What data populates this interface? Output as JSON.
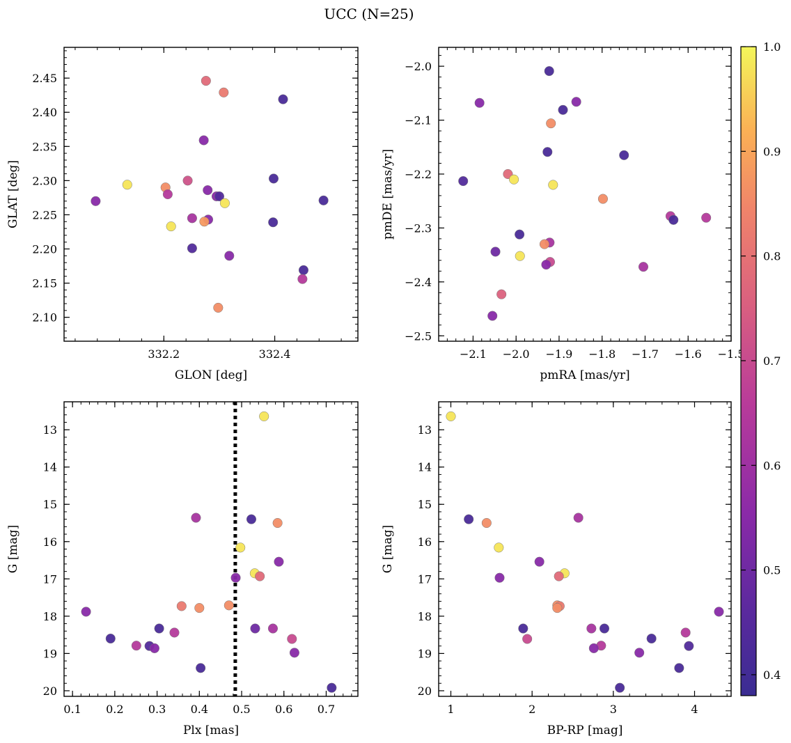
{
  "suptitle": "UCC (N=25)",
  "colorbar": {
    "colormap": "plasma",
    "range": [
      0.38,
      1.0
    ],
    "ticks": [
      0.4,
      0.5,
      0.6,
      0.7,
      0.8,
      0.9,
      1.0
    ],
    "tick_labels": [
      "0.4",
      "0.5",
      "0.6",
      "0.7",
      "0.8",
      "0.9",
      "1.0"
    ]
  },
  "chart_data": [
    {
      "type": "scatter",
      "id": "glon-glat",
      "xlabel": "GLON [deg]",
      "ylabel": "GLAT [deg]",
      "xlim": [
        332.02,
        332.55
      ],
      "ylim": [
        2.065,
        2.495
      ],
      "y_inverted": false,
      "xticks": [
        332.2,
        332.4
      ],
      "xtick_labels": [
        "332.2",
        "332.4"
      ],
      "yticks": [
        2.1,
        2.15,
        2.2,
        2.25,
        2.3,
        2.35,
        2.4,
        2.45
      ],
      "ytick_labels": [
        "2.10",
        "2.15",
        "2.20",
        "2.25",
        "2.30",
        "2.35",
        "2.40",
        "2.45"
      ],
      "grid": false,
      "points": [
        {
          "x": 332.276,
          "y": 2.446,
          "c": 0.78
        },
        {
          "x": 332.308,
          "y": 2.429,
          "c": 0.82
        },
        {
          "x": 332.415,
          "y": 2.419,
          "c": 0.42
        },
        {
          "x": 332.272,
          "y": 2.359,
          "c": 0.55
        },
        {
          "x": 332.398,
          "y": 2.303,
          "c": 0.42
        },
        {
          "x": 332.134,
          "y": 2.294,
          "c": 0.98
        },
        {
          "x": 332.243,
          "y": 2.3,
          "c": 0.72
        },
        {
          "x": 332.203,
          "y": 2.29,
          "c": 0.86
        },
        {
          "x": 332.279,
          "y": 2.286,
          "c": 0.55
        },
        {
          "x": 332.207,
          "y": 2.28,
          "c": 0.65
        },
        {
          "x": 332.295,
          "y": 2.277,
          "c": 0.55
        },
        {
          "x": 332.3,
          "y": 2.277,
          "c": 0.44
        },
        {
          "x": 332.31,
          "y": 2.267,
          "c": 0.98
        },
        {
          "x": 332.077,
          "y": 2.27,
          "c": 0.55
        },
        {
          "x": 332.488,
          "y": 2.271,
          "c": 0.42
        },
        {
          "x": 332.251,
          "y": 2.245,
          "c": 0.62
        },
        {
          "x": 332.28,
          "y": 2.243,
          "c": 0.55
        },
        {
          "x": 332.273,
          "y": 2.24,
          "c": 0.88
        },
        {
          "x": 332.397,
          "y": 2.239,
          "c": 0.42
        },
        {
          "x": 332.213,
          "y": 2.233,
          "c": 0.98
        },
        {
          "x": 332.251,
          "y": 2.201,
          "c": 0.44
        },
        {
          "x": 332.318,
          "y": 2.19,
          "c": 0.55
        },
        {
          "x": 332.452,
          "y": 2.169,
          "c": 0.42
        },
        {
          "x": 332.45,
          "y": 2.156,
          "c": 0.65
        },
        {
          "x": 332.298,
          "y": 2.114,
          "c": 0.86
        }
      ]
    },
    {
      "type": "scatter",
      "id": "pmra-pmde",
      "xlabel": "pmRA [mas/yr]",
      "ylabel": "pmDE [mas/yr]",
      "xlim": [
        -2.18,
        -1.5
      ],
      "ylim": [
        -2.51,
        -1.965
      ],
      "y_inverted": false,
      "xticks": [
        -2.1,
        -2.0,
        -1.9,
        -1.8,
        -1.7,
        -1.6,
        -1.5
      ],
      "xtick_labels": [
        "−2.1",
        "−2.0",
        "−1.9",
        "−1.8",
        "−1.7",
        "−1.6",
        "−1.5"
      ],
      "yticks": [
        -2.5,
        -2.4,
        -2.3,
        -2.2,
        -2.1,
        -2.0
      ],
      "ytick_labels": [
        "−2.5",
        "−2.4",
        "−2.3",
        "−2.2",
        "−2.1",
        "−2.0"
      ],
      "grid": false,
      "points": [
        {
          "x": -1.923,
          "y": -2.009,
          "c": 0.42
        },
        {
          "x": -2.085,
          "y": -2.068,
          "c": 0.55
        },
        {
          "x": -1.86,
          "y": -2.066,
          "c": 0.55
        },
        {
          "x": -1.891,
          "y": -2.081,
          "c": 0.42
        },
        {
          "x": -1.919,
          "y": -2.106,
          "c": 0.86
        },
        {
          "x": -1.927,
          "y": -2.159,
          "c": 0.42
        },
        {
          "x": -1.749,
          "y": -2.165,
          "c": 0.42
        },
        {
          "x": -2.123,
          "y": -2.213,
          "c": 0.44
        },
        {
          "x": -2.019,
          "y": -2.2,
          "c": 0.78
        },
        {
          "x": -2.005,
          "y": -2.21,
          "c": 0.98
        },
        {
          "x": -1.914,
          "y": -2.22,
          "c": 0.98
        },
        {
          "x": -1.798,
          "y": -2.246,
          "c": 0.86
        },
        {
          "x": -1.641,
          "y": -2.278,
          "c": 0.65
        },
        {
          "x": -1.634,
          "y": -2.285,
          "c": 0.42
        },
        {
          "x": -1.558,
          "y": -2.281,
          "c": 0.65
        },
        {
          "x": -1.992,
          "y": -2.312,
          "c": 0.42
        },
        {
          "x": -1.922,
          "y": -2.327,
          "c": 0.62
        },
        {
          "x": -1.934,
          "y": -2.33,
          "c": 0.86
        },
        {
          "x": -2.048,
          "y": -2.344,
          "c": 0.5
        },
        {
          "x": -1.991,
          "y": -2.352,
          "c": 0.98
        },
        {
          "x": -1.921,
          "y": -2.363,
          "c": 0.7
        },
        {
          "x": -1.93,
          "y": -2.368,
          "c": 0.55
        },
        {
          "x": -1.704,
          "y": -2.372,
          "c": 0.62
        },
        {
          "x": -2.034,
          "y": -2.423,
          "c": 0.76
        },
        {
          "x": -2.055,
          "y": -2.463,
          "c": 0.55
        }
      ]
    },
    {
      "type": "scatter",
      "id": "plx-g",
      "xlabel": "Plx [mas]",
      "ylabel": "G [mag]",
      "xlim": [
        0.08,
        0.775
      ],
      "ylim": [
        20.15,
        12.25
      ],
      "y_inverted": true,
      "xticks": [
        0.1,
        0.2,
        0.3,
        0.4,
        0.5,
        0.6,
        0.7
      ],
      "xtick_labels": [
        "0.1",
        "0.2",
        "0.3",
        "0.4",
        "0.5",
        "0.6",
        "0.7"
      ],
      "yticks": [
        13,
        14,
        15,
        16,
        17,
        18,
        19,
        20
      ],
      "ytick_labels": [
        "13",
        "14",
        "15",
        "16",
        "17",
        "18",
        "19",
        "20"
      ],
      "grid": false,
      "vline": {
        "x": 0.485,
        "style": "dotted"
      },
      "points": [
        {
          "x": 0.553,
          "y": 12.64,
          "c": 0.98
        },
        {
          "x": 0.392,
          "y": 15.36,
          "c": 0.62
        },
        {
          "x": 0.523,
          "y": 15.4,
          "c": 0.42
        },
        {
          "x": 0.585,
          "y": 15.5,
          "c": 0.86
        },
        {
          "x": 0.497,
          "y": 16.16,
          "c": 0.98
        },
        {
          "x": 0.588,
          "y": 16.54,
          "c": 0.55
        },
        {
          "x": 0.531,
          "y": 16.85,
          "c": 0.98
        },
        {
          "x": 0.543,
          "y": 16.93,
          "c": 0.78
        },
        {
          "x": 0.486,
          "y": 16.97,
          "c": 0.55
        },
        {
          "x": 0.47,
          "y": 17.71,
          "c": 0.86
        },
        {
          "x": 0.358,
          "y": 17.73,
          "c": 0.82
        },
        {
          "x": 0.4,
          "y": 17.78,
          "c": 0.86
        },
        {
          "x": 0.132,
          "y": 17.88,
          "c": 0.55
        },
        {
          "x": 0.305,
          "y": 18.33,
          "c": 0.42
        },
        {
          "x": 0.532,
          "y": 18.33,
          "c": 0.5
        },
        {
          "x": 0.574,
          "y": 18.33,
          "c": 0.62
        },
        {
          "x": 0.341,
          "y": 18.44,
          "c": 0.65
        },
        {
          "x": 0.19,
          "y": 18.6,
          "c": 0.42
        },
        {
          "x": 0.619,
          "y": 18.61,
          "c": 0.7
        },
        {
          "x": 0.251,
          "y": 18.79,
          "c": 0.65
        },
        {
          "x": 0.282,
          "y": 18.8,
          "c": 0.44
        },
        {
          "x": 0.294,
          "y": 18.86,
          "c": 0.55
        },
        {
          "x": 0.625,
          "y": 18.98,
          "c": 0.55
        },
        {
          "x": 0.403,
          "y": 19.39,
          "c": 0.42
        },
        {
          "x": 0.713,
          "y": 19.92,
          "c": 0.42
        }
      ]
    },
    {
      "type": "scatter",
      "id": "bprp-g",
      "xlabel": "BP-RP [mag]",
      "ylabel": "G [mag]",
      "xlim": [
        0.85,
        4.45
      ],
      "ylim": [
        20.15,
        12.25
      ],
      "y_inverted": true,
      "xticks": [
        1,
        2,
        3,
        4
      ],
      "xtick_labels": [
        "1",
        "2",
        "3",
        "4"
      ],
      "yticks": [
        13,
        14,
        15,
        16,
        17,
        18,
        19,
        20
      ],
      "ytick_labels": [
        "13",
        "14",
        "15",
        "16",
        "17",
        "18",
        "19",
        "20"
      ],
      "grid": false,
      "points": [
        {
          "x": 1.0,
          "y": 12.64,
          "c": 0.98
        },
        {
          "x": 1.22,
          "y": 15.4,
          "c": 0.42
        },
        {
          "x": 1.44,
          "y": 15.5,
          "c": 0.86
        },
        {
          "x": 2.57,
          "y": 15.36,
          "c": 0.62
        },
        {
          "x": 1.59,
          "y": 16.16,
          "c": 0.98
        },
        {
          "x": 2.09,
          "y": 16.54,
          "c": 0.55
        },
        {
          "x": 1.6,
          "y": 16.97,
          "c": 0.55
        },
        {
          "x": 2.4,
          "y": 16.85,
          "c": 0.98
        },
        {
          "x": 2.33,
          "y": 16.93,
          "c": 0.78
        },
        {
          "x": 2.31,
          "y": 17.71,
          "c": 0.86
        },
        {
          "x": 2.34,
          "y": 17.73,
          "c": 0.82
        },
        {
          "x": 2.31,
          "y": 17.78,
          "c": 0.86
        },
        {
          "x": 4.3,
          "y": 17.88,
          "c": 0.55
        },
        {
          "x": 1.89,
          "y": 18.33,
          "c": 0.42
        },
        {
          "x": 2.89,
          "y": 18.33,
          "c": 0.42
        },
        {
          "x": 2.73,
          "y": 18.33,
          "c": 0.62
        },
        {
          "x": 3.89,
          "y": 18.44,
          "c": 0.65
        },
        {
          "x": 3.47,
          "y": 18.6,
          "c": 0.42
        },
        {
          "x": 1.94,
          "y": 18.61,
          "c": 0.7
        },
        {
          "x": 2.85,
          "y": 18.79,
          "c": 0.65
        },
        {
          "x": 3.93,
          "y": 18.8,
          "c": 0.44
        },
        {
          "x": 2.76,
          "y": 18.86,
          "c": 0.55
        },
        {
          "x": 3.32,
          "y": 18.98,
          "c": 0.55
        },
        {
          "x": 3.81,
          "y": 19.39,
          "c": 0.42
        },
        {
          "x": 3.08,
          "y": 19.92,
          "c": 0.42
        }
      ]
    }
  ]
}
